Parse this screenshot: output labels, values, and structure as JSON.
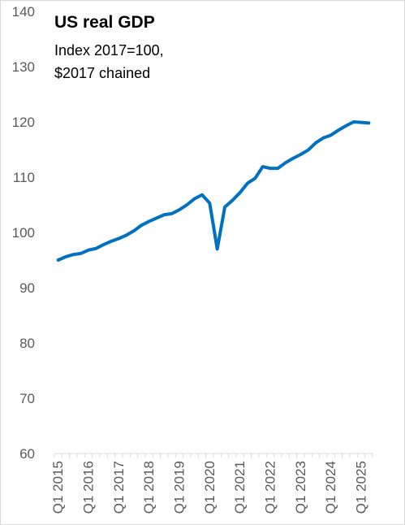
{
  "chart_data": {
    "type": "line",
    "title": "US real GDP",
    "subtitle_lines": [
      "Index 2017=100,",
      "$2017 chained"
    ],
    "xlabel": "",
    "ylabel": "",
    "ylim": [
      60,
      140
    ],
    "y_ticks": [
      60,
      70,
      80,
      90,
      100,
      110,
      120,
      130,
      140
    ],
    "x_tick_labels": [
      "Q1 2015",
      "Q1 2016",
      "Q1 2017",
      "Q1 2018",
      "Q1 2019",
      "Q1 2020",
      "Q1 2021",
      "Q1 2022",
      "Q1 2023",
      "Q1 2024",
      "Q1 2025"
    ],
    "grid": false,
    "legend": "none",
    "line_color": "#0070c0",
    "x": [
      "Q1 2015",
      "Q2 2015",
      "Q3 2015",
      "Q4 2015",
      "Q1 2016",
      "Q2 2016",
      "Q3 2016",
      "Q4 2016",
      "Q1 2017",
      "Q2 2017",
      "Q3 2017",
      "Q4 2017",
      "Q1 2018",
      "Q2 2018",
      "Q3 2018",
      "Q4 2018",
      "Q1 2019",
      "Q2 2019",
      "Q3 2019",
      "Q4 2019",
      "Q1 2020",
      "Q2 2020",
      "Q3 2020",
      "Q4 2020",
      "Q1 2021",
      "Q2 2021",
      "Q3 2021",
      "Q4 2021",
      "Q1 2022",
      "Q2 2022",
      "Q3 2022",
      "Q4 2022",
      "Q1 2023",
      "Q2 2023",
      "Q3 2023",
      "Q4 2023",
      "Q1 2024",
      "Q2 2024",
      "Q3 2024",
      "Q4 2024",
      "Q1 2025",
      "Q2 2025"
    ],
    "values": [
      95.0,
      95.6,
      96.0,
      96.2,
      96.8,
      97.1,
      97.8,
      98.4,
      98.9,
      99.5,
      100.3,
      101.3,
      102.0,
      102.6,
      103.2,
      103.4,
      104.1,
      105.0,
      106.1,
      106.8,
      105.3,
      97.0,
      104.6,
      105.8,
      107.2,
      108.9,
      109.8,
      111.9,
      111.6,
      111.6,
      112.6,
      113.4,
      114.1,
      114.9,
      116.2,
      117.1,
      117.6,
      118.5,
      119.3,
      120.0,
      119.9,
      119.8
    ]
  }
}
